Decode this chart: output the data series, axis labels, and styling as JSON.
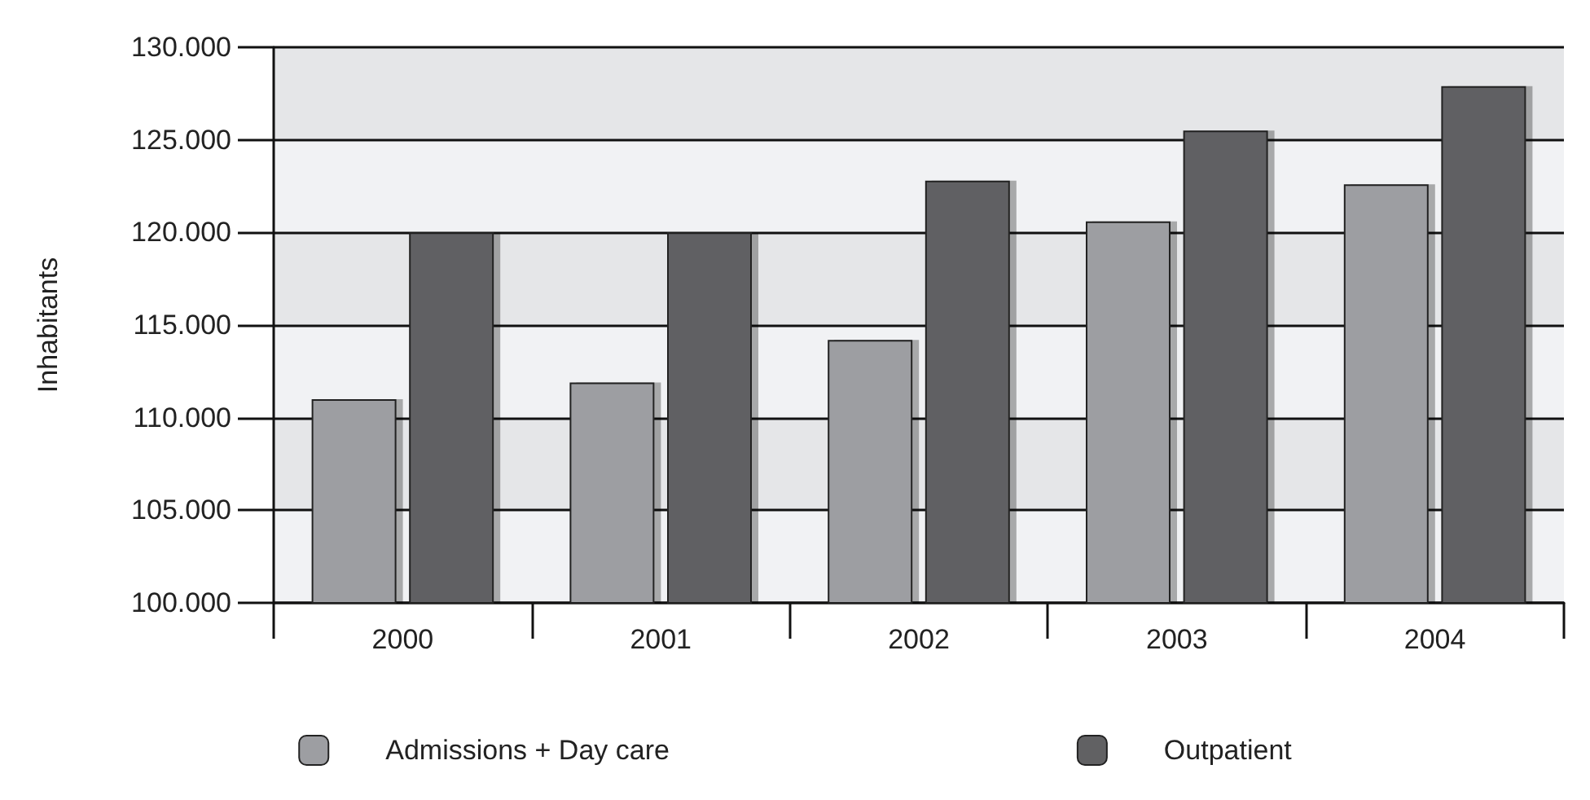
{
  "chart_data": {
    "type": "bar",
    "ylabel": "Inhabitants",
    "categories": [
      "2000",
      "2001",
      "2002",
      "2003",
      "2004"
    ],
    "series": [
      {
        "name": "Admissions + Day care",
        "color": "#9d9ea2",
        "values": [
          111000,
          111900,
          114200,
          120600,
          122600
        ]
      },
      {
        "name": "Outpatient",
        "color": "#616163",
        "values": [
          120000,
          120000,
          122800,
          125500,
          127900
        ]
      }
    ],
    "ylim": [
      100000,
      130000
    ],
    "yticks": [
      {
        "value": 100000,
        "label": "100.000"
      },
      {
        "value": 105000,
        "label": "105.000"
      },
      {
        "value": 110000,
        "label": "110.000"
      },
      {
        "value": 115000,
        "label": "115.000"
      },
      {
        "value": 120000,
        "label": "120.000"
      },
      {
        "value": 125000,
        "label": "125.000"
      },
      {
        "value": 130000,
        "label": "130.000"
      }
    ],
    "grid": true,
    "legend": "bottom"
  }
}
